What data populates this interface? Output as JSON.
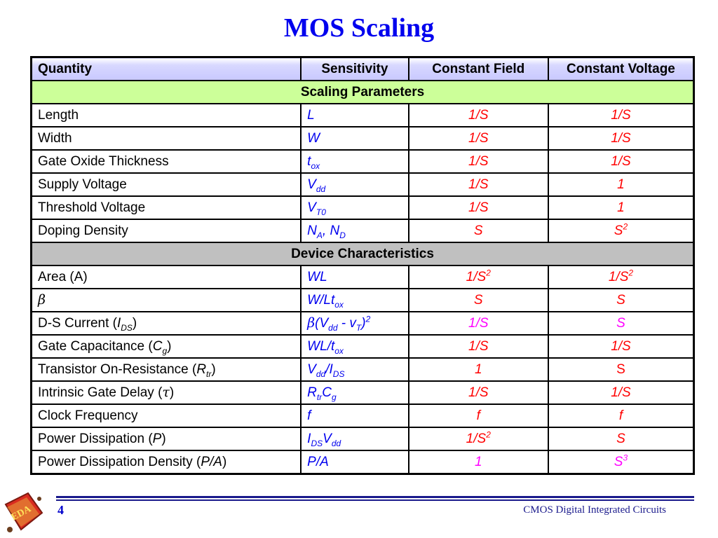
{
  "title": "MOS Scaling",
  "headers": [
    "Quantity",
    "Sensitivity",
    "Constant Field",
    "Constant Voltage"
  ],
  "sections": {
    "params": "Scaling Parameters",
    "device": "Device Characteristics"
  },
  "rows": {
    "length": {
      "q": "Length",
      "s": "L",
      "cf": "1/S",
      "cv": "1/S"
    },
    "width": {
      "q": "Width",
      "s": "W",
      "cf": "1/S",
      "cv": "1/S"
    },
    "tox": {
      "q": "Gate Oxide Thickness",
      "s_main": "t",
      "s_sub": "ox",
      "cf": "1/S",
      "cv": "1/S"
    },
    "vdd": {
      "q": "Supply Voltage",
      "s_main": "V",
      "s_sub": "dd",
      "cf": "1/S",
      "cv": "1"
    },
    "vt0": {
      "q": "Threshold Voltage",
      "s_main": "V",
      "s_sub": "T0",
      "cf": "1/S",
      "cv": "1"
    },
    "doping": {
      "q": "Doping Density",
      "s_a": "N",
      "s_a_sub": "A",
      "s_sep": ", ",
      "s_b": "N",
      "s_b_sub": "D",
      "cf": "S",
      "cv_main": "S",
      "cv_sup": "2"
    },
    "area": {
      "q": "Area (A)",
      "s": "WL",
      "cf_main": "1/S",
      "cf_sup": "2",
      "cv_main": "1/S",
      "cv_sup": "2"
    },
    "beta": {
      "q": "β",
      "s_main": "W/Lt",
      "s_sub": "ox",
      "cf": "S",
      "cv": "S"
    },
    "ids": {
      "q_pre": "D-S Current (",
      "q_it": "I",
      "q_sub": "DS",
      "q_post": ")",
      "s_b": "β",
      "s_1": "(V",
      "s_1sub": "dd",
      "s_mid": " - v",
      "s_2sub": "T",
      "s_end": ")",
      "s_sup": "2",
      "cf": "1/S",
      "cv": "S"
    },
    "cg": {
      "q_pre": "Gate Capacitance (",
      "q_it": "C",
      "q_sub": "g",
      "q_post": ")",
      "s_main": "WL/t",
      "s_sub": "ox",
      "cf": "1/S",
      "cv": "1/S"
    },
    "rtr": {
      "q_pre": "Transistor On-Resistance (",
      "q_it": "R",
      "q_sub": "tr",
      "q_post": ")",
      "s_1": "V",
      "s_1sub": "dd",
      "s_mid": "/I",
      "s_2sub": "DS",
      "cf": "1",
      "cv": "S"
    },
    "delay": {
      "q_pre": "Intrinsic Gate Delay (",
      "q_it": "τ",
      "q_post": ")",
      "s_1": "R",
      "s_1sub": "tr",
      "s_mid": "C",
      "s_2sub": "g",
      "cf": "1/S",
      "cv": "1/S"
    },
    "clock": {
      "q": "Clock Frequency",
      "s": "f",
      "cf": "f",
      "cv": "f"
    },
    "power": {
      "q_pre": "Power Dissipation (",
      "q_it": "P",
      "q_post": ")",
      "s_1": "I",
      "s_1sub": "DS",
      "s_mid": "V",
      "s_2sub": "dd",
      "cf_main": "1/S",
      "cf_sup": "2",
      "cv": "S"
    },
    "pdensity": {
      "q_pre": "Power Dissipation Density (",
      "q_it": "P/A",
      "q_post": ")",
      "s": "P/A",
      "cf": "1",
      "cv_main": "S",
      "cv_sup": "3"
    }
  },
  "footer": {
    "page": "4",
    "text": "CMOS Digital Integrated Circuits"
  },
  "logo": {
    "text": "EDA"
  },
  "colors": {
    "title": "#0000ee",
    "sensitivity": "#0000ee",
    "value_red": "#ff0000",
    "value_magenta": "#ff00ff",
    "param_band": "#ccff99",
    "device_band": "#c0c0c0"
  }
}
